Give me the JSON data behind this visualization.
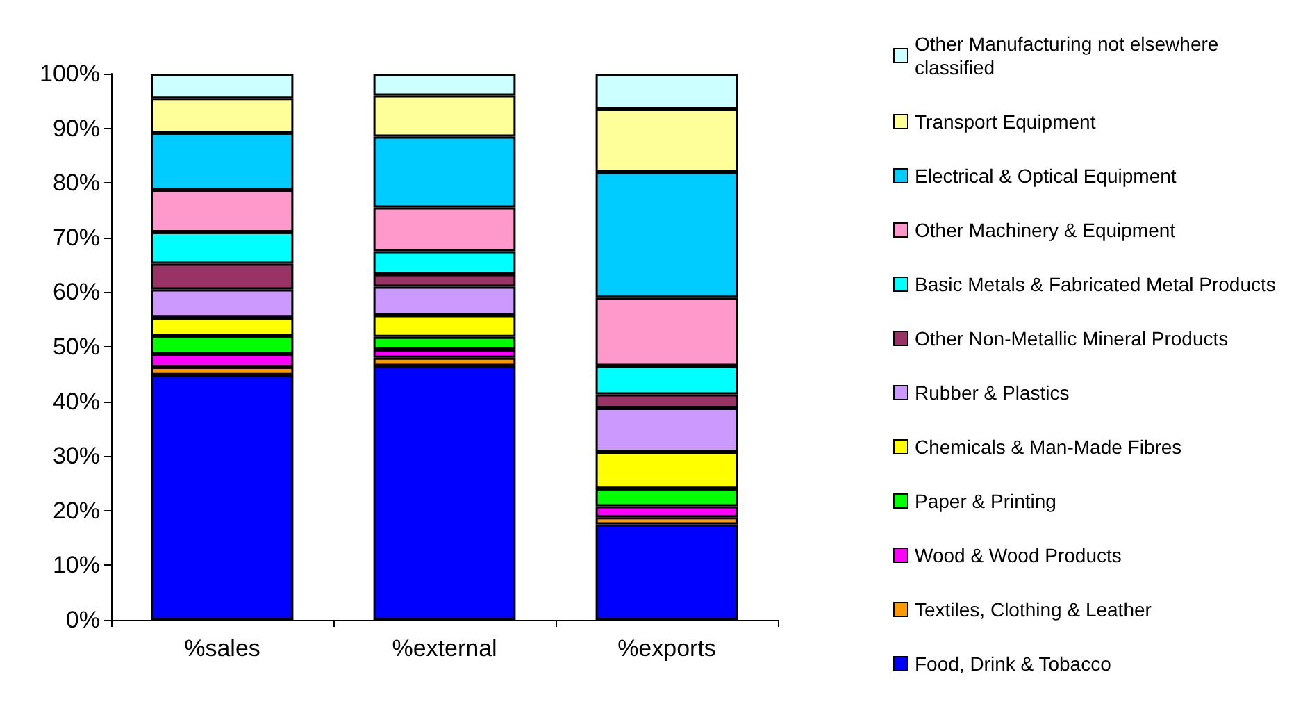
{
  "chart_data": {
    "type": "bar",
    "stacked": true,
    "categories": [
      "%sales",
      "%external",
      "%exports"
    ],
    "ylim": [
      0,
      100
    ],
    "yticks": [
      {
        "value": 0,
        "label": "0%"
      },
      {
        "value": 10,
        "label": "10%"
      },
      {
        "value": 20,
        "label": "20%"
      },
      {
        "value": 30,
        "label": "30%"
      },
      {
        "value": 40,
        "label": "40%"
      },
      {
        "value": 50,
        "label": "50%"
      },
      {
        "value": 60,
        "label": "60%"
      },
      {
        "value": 70,
        "label": "70%"
      },
      {
        "value": 80,
        "label": "80%"
      },
      {
        "value": 90,
        "label": "90%"
      },
      {
        "value": 100,
        "label": "100%"
      }
    ],
    "grid": false,
    "legend": "right",
    "series": [
      {
        "name": "Food, Drink & Tobacco",
        "color": "#0000ff",
        "values": [
          44.8,
          46.5,
          17.5
        ]
      },
      {
        "name": "Textiles, Clothing & Leather",
        "color": "#ff9900",
        "values": [
          1.5,
          1.5,
          1.3
        ]
      },
      {
        "name": "Wood & Wood Products",
        "color": "#ff00ff",
        "values": [
          2.4,
          1.5,
          2.0
        ]
      },
      {
        "name": "Paper & Printing",
        "color": "#00ff00",
        "values": [
          3.3,
          2.3,
          3.2
        ]
      },
      {
        "name": "Chemicals & Man-Made Fibres",
        "color": "#ffff00",
        "values": [
          3.3,
          4.0,
          6.8
        ]
      },
      {
        "name": "Rubber & Plastics",
        "color": "#cc99ff",
        "values": [
          5.2,
          5.2,
          8.0
        ]
      },
      {
        "name": "Other Non-Metallic Mineral Products",
        "color": "#993366",
        "values": [
          4.7,
          2.3,
          2.5
        ]
      },
      {
        "name": "Basic Metals & Fabricated Metal Products",
        "color": "#00ffff",
        "values": [
          5.8,
          4.2,
          5.2
        ]
      },
      {
        "name": "Other Machinery & Equipment",
        "color": "#ff99cc",
        "values": [
          7.7,
          8.0,
          12.5
        ]
      },
      {
        "name": "Electrical & Optical Equipment",
        "color": "#00ccff",
        "values": [
          10.5,
          13.0,
          23.0
        ]
      },
      {
        "name": "Transport Equipment",
        "color": "#ffff99",
        "values": [
          6.3,
          7.5,
          11.5
        ]
      },
      {
        "name": "Other Manufacturing not elsewhere classified",
        "color": "#ccffff",
        "values": [
          4.5,
          4.0,
          6.5
        ]
      }
    ]
  }
}
